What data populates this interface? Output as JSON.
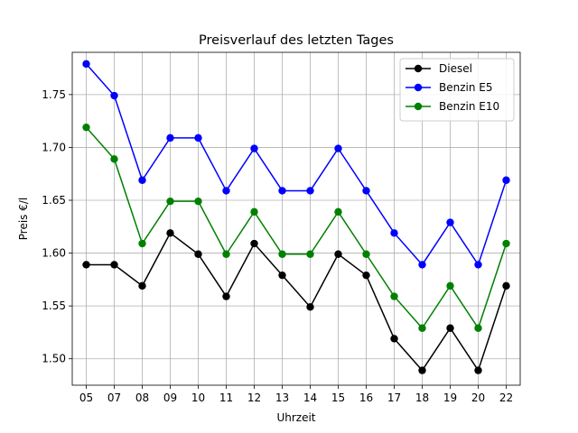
{
  "chart_data": {
    "type": "line",
    "title": "Preisverlauf des letzten Tages",
    "xlabel": "Uhrzeit",
    "ylabel": "Preis €/l",
    "categories": [
      "05",
      "07",
      "08",
      "09",
      "10",
      "11",
      "12",
      "13",
      "14",
      "15",
      "16",
      "17",
      "18",
      "19",
      "20",
      "22"
    ],
    "ylim": [
      1.475,
      1.79
    ],
    "yticks": [
      1.5,
      1.55,
      1.6,
      1.65,
      1.7,
      1.75
    ],
    "grid": true,
    "legend_position": "top-right",
    "series": [
      {
        "name": "Diesel",
        "color": "#000000",
        "values": [
          1.589,
          1.589,
          1.569,
          1.619,
          1.599,
          1.559,
          1.609,
          1.579,
          1.549,
          1.599,
          1.579,
          1.519,
          1.489,
          1.529,
          1.489,
          1.569
        ]
      },
      {
        "name": "Benzin E5",
        "color": "#0000ff",
        "values": [
          1.779,
          1.749,
          1.669,
          1.709,
          1.709,
          1.659,
          1.699,
          1.659,
          1.659,
          1.699,
          1.659,
          1.619,
          1.589,
          1.629,
          1.589,
          1.669
        ]
      },
      {
        "name": "Benzin E10",
        "color": "#008000",
        "values": [
          1.719,
          1.689,
          1.609,
          1.649,
          1.649,
          1.599,
          1.639,
          1.599,
          1.599,
          1.639,
          1.599,
          1.559,
          1.529,
          1.569,
          1.529,
          1.609
        ]
      }
    ]
  }
}
